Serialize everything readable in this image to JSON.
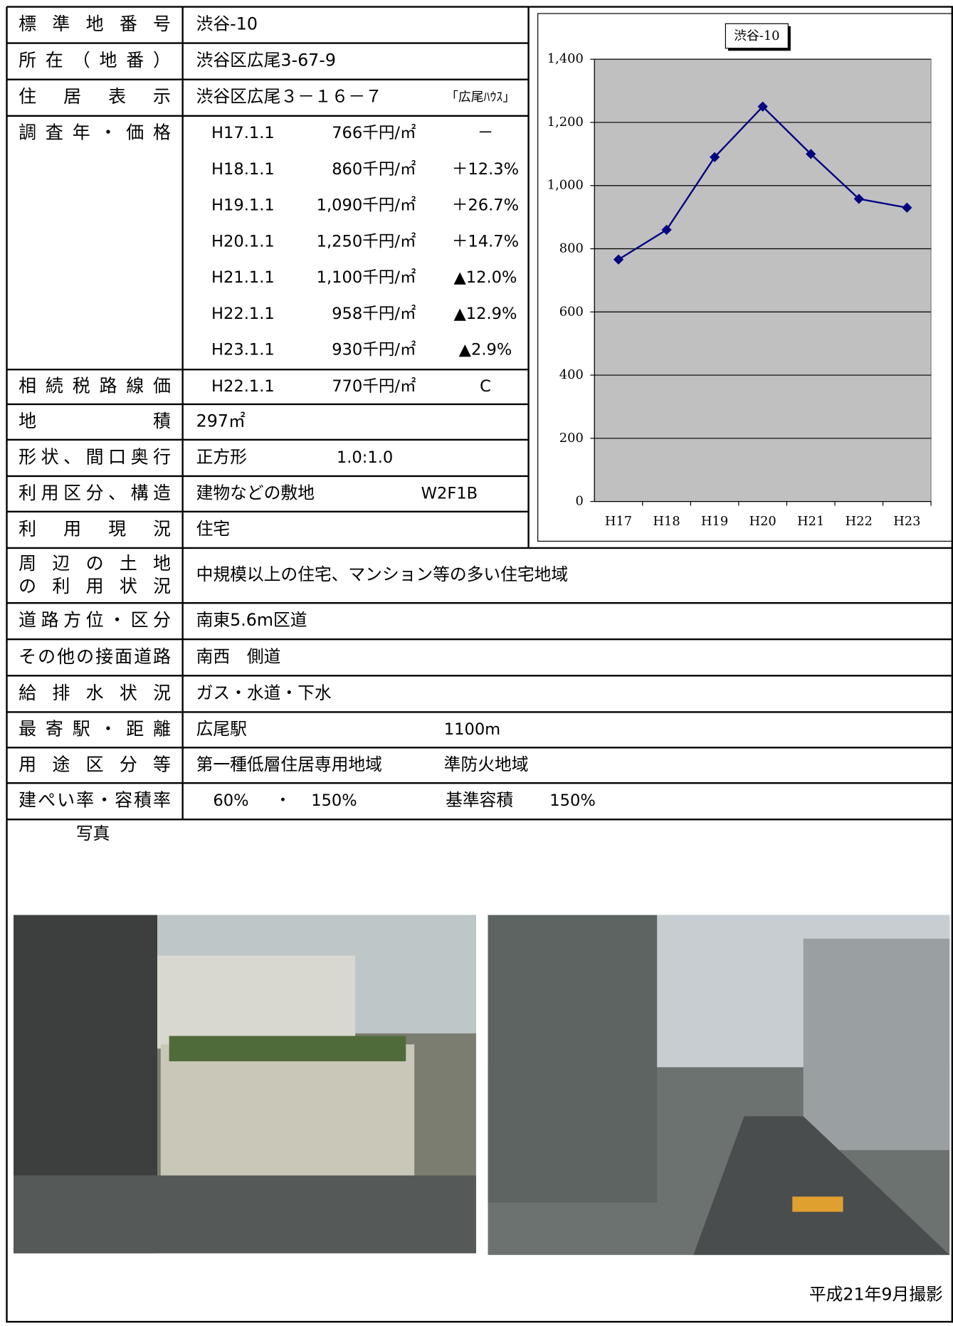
{
  "rows": [
    {
      "label": "標準地番号",
      "values": [
        "渋谷-10"
      ]
    },
    {
      "label": "所在（地番）",
      "values": [
        "渋谷区広尾3-67-9"
      ]
    },
    {
      "label": "住居表示",
      "values": [
        "渋谷区広尾３－１６－７",
        "「広尾ﾊｳｽ」"
      ]
    },
    {
      "label": "調査年・価格",
      "values": []
    },
    {
      "label": "相続税路線価",
      "values": [
        "H22.1.1",
        "770千円/㎡",
        "C"
      ]
    },
    {
      "label": "地積",
      "values": [
        "297㎡"
      ]
    },
    {
      "label": "形状、間口奥行",
      "values": [
        "正方形",
        "1.0:1.0"
      ]
    },
    {
      "label": "利用区分、構造",
      "values": [
        "建物などの敷地",
        "W2F1B"
      ]
    },
    {
      "label": "利用現況",
      "values": [
        "住宅"
      ]
    },
    {
      "label": [
        "周辺の土地",
        "の利用状況"
      ],
      "values": [
        "中規模以上の住宅、マンション等の多い住宅地域"
      ]
    },
    {
      "label": "道路方位・区分",
      "values": [
        "南東5.6m区道"
      ]
    },
    {
      "label": "その他の接面道路",
      "values": [
        "南西　側道"
      ]
    },
    {
      "label": "給排水状況",
      "values": [
        "ガス・水道・下水"
      ]
    },
    {
      "label": "最寄駅・距離",
      "values": [
        "広尾駅",
        "1100m"
      ]
    },
    {
      "label": "用途区分等",
      "values": [
        "第一種低層住居専用地域",
        "準防火地域"
      ]
    },
    {
      "label": "建ぺい率・容積率",
      "values": [
        "60%",
        "・",
        "150%",
        "基準容積",
        "150%"
      ]
    }
  ],
  "price_history": [
    [
      "H17.1.1",
      "766千円/㎡",
      "－"
    ],
    [
      "H18.1.1",
      "860千円/㎡",
      "＋12.3%"
    ],
    [
      "H19.1.1",
      "1,090千円/㎡",
      "＋26.7%"
    ],
    [
      "H20.1.1",
      "1,250千円/㎡",
      "＋14.7%"
    ],
    [
      "H21.1.1",
      "1,100千円/㎡",
      "▲12.0%"
    ],
    [
      "H22.1.1",
      "958千円/㎡",
      "▲12.9%"
    ],
    [
      "H23.1.1",
      "930千円/㎡",
      "▲2.9%"
    ]
  ],
  "photo_caption": "写真",
  "photo_date": "平成21年9月撮影",
  "chart_data": {
    "type": "line",
    "title": "渋谷-10",
    "categories": [
      "H17",
      "H18",
      "H19",
      "H20",
      "H21",
      "H22",
      "H23"
    ],
    "values": [
      766,
      860,
      1090,
      1250,
      1100,
      958,
      930
    ],
    "color": "#000080",
    "ylim": [
      0,
      1400
    ],
    "yticks": [
      0,
      200,
      400,
      600,
      800,
      {
        "value": 1000,
        "label": "1,000"
      },
      {
        "value": 1200,
        "label": "1,200"
      },
      {
        "value": 1400,
        "label": "1,400"
      }
    ],
    "grid": true
  }
}
